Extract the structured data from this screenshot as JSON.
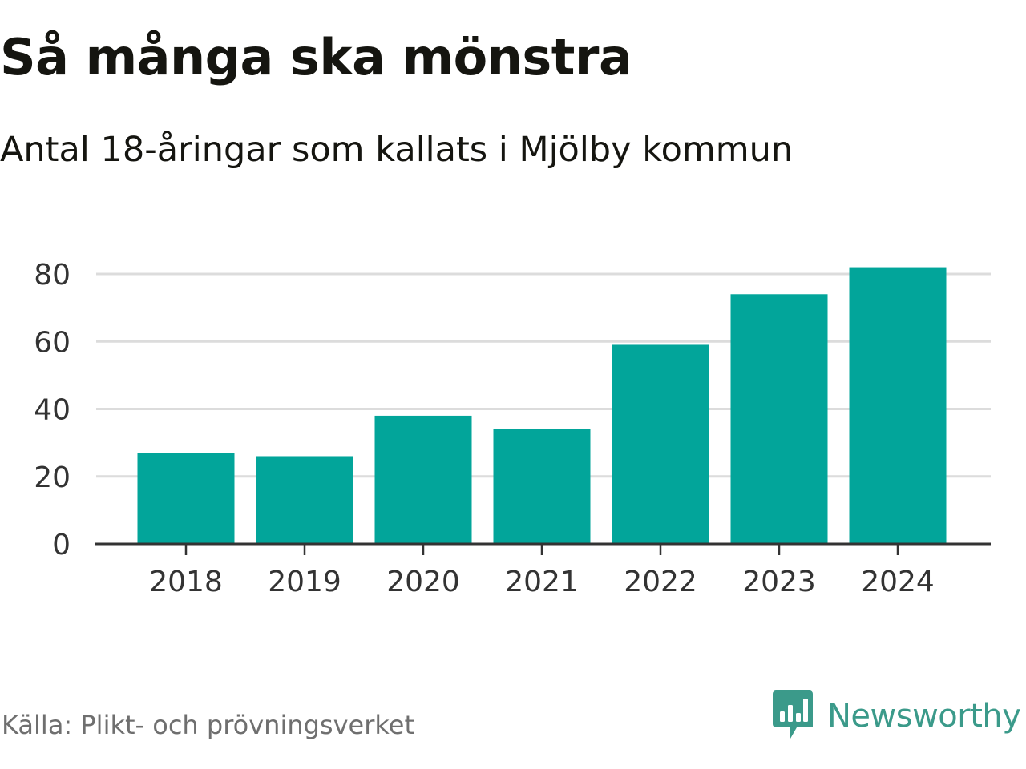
{
  "header": {
    "title": "Så många ska mönstra",
    "subtitle": "Antal 18-åringar som kallats i Mjölby kommun"
  },
  "chart_data": {
    "type": "bar",
    "title": "Så många ska mönstra",
    "subtitle": "Antal 18-åringar som kallats i Mjölby kommun",
    "xlabel": "",
    "ylabel": "",
    "categories": [
      "2018",
      "2019",
      "2020",
      "2021",
      "2022",
      "2023",
      "2024"
    ],
    "values": [
      27,
      26,
      38,
      34,
      59,
      74,
      82
    ],
    "ylim": [
      0,
      80
    ],
    "yticks": [
      0,
      20,
      40,
      60,
      80
    ],
    "grid": true,
    "bar_color": "#02a59a",
    "grid_color": "#dcdcdc",
    "axis_color": "#333333"
  },
  "footer": {
    "source": "Källa: Plikt- och prövningsverket",
    "brand": "Newsworthy",
    "brand_icon": "newsworthy-logo-icon",
    "brand_color": "#3b9a8a"
  }
}
